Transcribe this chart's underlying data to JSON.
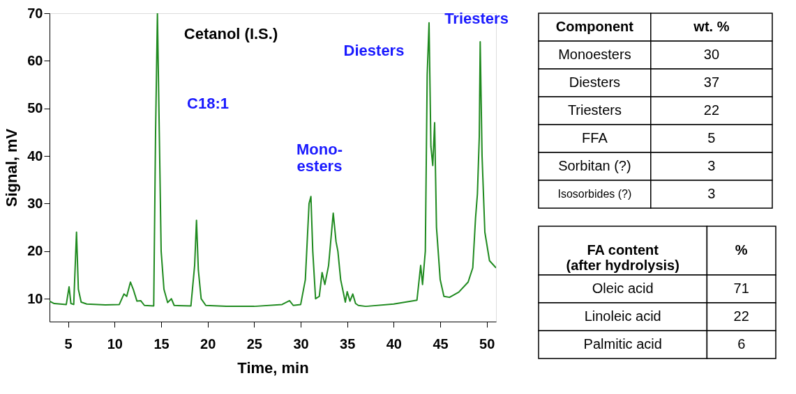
{
  "chart_data": [
    {
      "type": "line",
      "xlabel": "Time, min",
      "ylabel": "Signal, mV",
      "xlim": [
        3,
        51
      ],
      "ylim": [
        5.2,
        70
      ],
      "xticks": [
        5,
        10,
        15,
        20,
        25,
        30,
        35,
        40,
        45,
        50
      ],
      "yticks": [
        10,
        20,
        30,
        40,
        50,
        60,
        70
      ],
      "grid": false,
      "series": [
        {
          "color": "#1f8a1f",
          "x": [
            3,
            3.5,
            4.8,
            5.1,
            5.3,
            5.6,
            5.9,
            6.1,
            6.4,
            7,
            9,
            10.5,
            11.0,
            11.3,
            11.7,
            12.0,
            12.4,
            12.8,
            13.2,
            14.2,
            14.4,
            14.6,
            14.8,
            15.0,
            15.3,
            15.7,
            16.1,
            16.4,
            18.2,
            18.6,
            18.8,
            19.0,
            19.3,
            19.8,
            22,
            25,
            28,
            28.8,
            29.2,
            30.0,
            30.5,
            30.9,
            31.1,
            31.3,
            31.6,
            32.0,
            32.3,
            32.6,
            33.0,
            33.5,
            33.8,
            34.0,
            34.3,
            34.8,
            35.0,
            35.3,
            35.6,
            35.9,
            36.2,
            37,
            40,
            42.5,
            42.9,
            43.1,
            43.4,
            43.6,
            43.8,
            44.0,
            44.2,
            44.4,
            44.6,
            45.0,
            45.4,
            46,
            47,
            48,
            48.5,
            48.8,
            49.0,
            49.2,
            49.3,
            49.5,
            49.8,
            50.3,
            51
          ],
          "values": [
            9.5,
            9.0,
            8.8,
            12.5,
            9.0,
            8.8,
            24,
            12,
            9.3,
            8.9,
            8.7,
            8.8,
            11,
            10.5,
            13.5,
            12,
            9.5,
            9.6,
            8.6,
            8.5,
            45,
            70,
            45,
            20,
            12,
            9.2,
            10,
            8.6,
            8.5,
            17,
            26.5,
            16,
            10,
            8.6,
            8.4,
            8.4,
            8.8,
            9.6,
            8.6,
            8.8,
            14,
            30,
            31.5,
            20,
            10,
            10.5,
            15.5,
            13,
            17,
            28,
            22,
            20,
            14,
            9.3,
            11.5,
            9.5,
            11,
            9,
            8.6,
            8.4,
            8.9,
            9.7,
            17,
            13,
            20,
            57,
            68,
            42,
            38,
            47,
            25,
            14,
            10.5,
            10.3,
            11.4,
            13.5,
            16.5,
            27,
            32,
            44,
            64,
            40,
            24,
            18,
            16.5
          ]
        }
      ],
      "annotations": [
        "Cetanol (I.S.)",
        "C18:1",
        "Mono-\nesters",
        "Diesters",
        "Triesters"
      ]
    },
    {
      "type": "other",
      "xlabel": "Component",
      "ylabel": "wt. %",
      "data_labels": true,
      "categories": [
        "Monoesters",
        "Diesters",
        "Triesters",
        "FFA",
        "Sorbitan (?)",
        "Isosorbides (?)"
      ],
      "values": [
        30,
        37,
        22,
        5,
        3,
        3
      ]
    },
    {
      "type": "other",
      "xlabel": "FA content\n(after hydrolysis)",
      "ylabel": "%",
      "data_labels": true,
      "categories": [
        "Oleic acid",
        "Linoleic acid",
        "Palmitic acid"
      ],
      "values": [
        71,
        22,
        6
      ]
    }
  ]
}
